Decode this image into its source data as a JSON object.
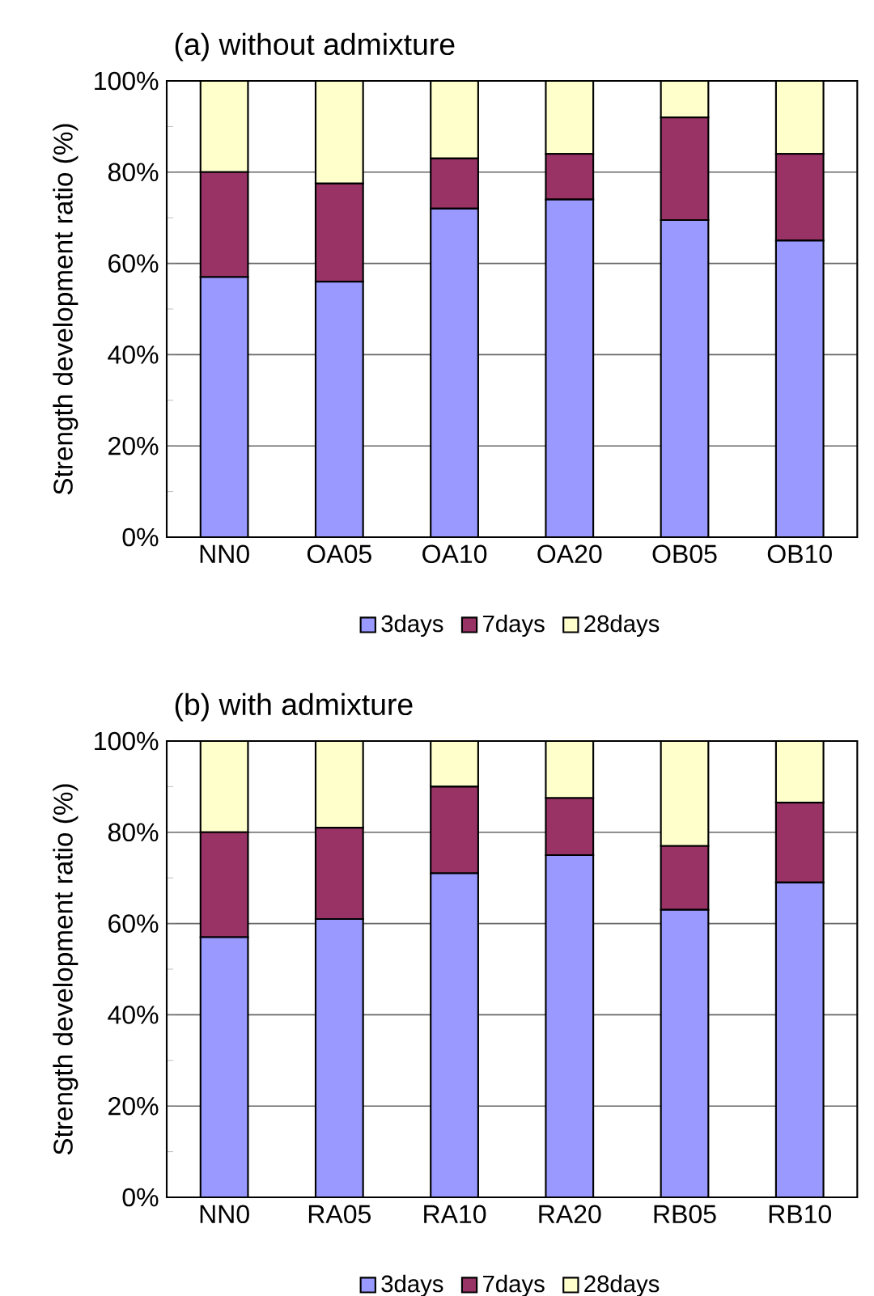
{
  "chart_data": [
    {
      "type": "bar",
      "title": "(a) without admixture",
      "ylabel": "Strength development ratio (%)",
      "stacked": true,
      "grid": "y",
      "legend": "bottom",
      "categories": [
        "NN0",
        "OA05",
        "OA10",
        "OA20",
        "OB05",
        "OB10"
      ],
      "series": [
        {
          "name": "3days",
          "color": "#9999ff",
          "values": [
            57,
            56,
            72,
            74,
            69.5,
            65
          ]
        },
        {
          "name": "7days",
          "color": "#993366",
          "values": [
            23,
            21.5,
            11,
            10,
            22.5,
            19
          ]
        },
        {
          "name": "28days",
          "color": "#ffffcc",
          "values": [
            20,
            22.5,
            17,
            16,
            8,
            16
          ]
        }
      ],
      "ylim": [
        0,
        100
      ],
      "yticks": [
        {
          "value": 0,
          "label": "0%"
        },
        {
          "value": 10,
          "label": null
        },
        {
          "value": 20,
          "label": "20%"
        },
        {
          "value": 30,
          "label": null
        },
        {
          "value": 40,
          "label": "40%"
        },
        {
          "value": 50,
          "label": null
        },
        {
          "value": 60,
          "label": "60%"
        },
        {
          "value": 70,
          "label": null
        },
        {
          "value": 80,
          "label": "80%"
        },
        {
          "value": 90,
          "label": null
        },
        {
          "value": 100,
          "label": "100%"
        }
      ]
    },
    {
      "type": "bar",
      "title": "(b) with admixture",
      "ylabel": "Strength development ratio (%)",
      "stacked": true,
      "grid": "y",
      "legend": "bottom",
      "categories": [
        "NN0",
        "RA05",
        "RA10",
        "RA20",
        "RB05",
        "RB10"
      ],
      "series": [
        {
          "name": "3days",
          "color": "#9999ff",
          "values": [
            57,
            61,
            71,
            75,
            63,
            69
          ]
        },
        {
          "name": "7days",
          "color": "#993366",
          "values": [
            23,
            20,
            19,
            12.5,
            14,
            17.5
          ]
        },
        {
          "name": "28days",
          "color": "#ffffcc",
          "values": [
            20,
            19,
            10,
            12.5,
            23,
            13.5
          ]
        }
      ],
      "ylim": [
        0,
        100
      ],
      "yticks": [
        {
          "value": 0,
          "label": "0%"
        },
        {
          "value": 10,
          "label": null
        },
        {
          "value": 20,
          "label": "20%"
        },
        {
          "value": 30,
          "label": null
        },
        {
          "value": 40,
          "label": "40%"
        },
        {
          "value": 50,
          "label": null
        },
        {
          "value": 60,
          "label": "60%"
        },
        {
          "value": 70,
          "label": null
        },
        {
          "value": 80,
          "label": "80%"
        },
        {
          "value": 90,
          "label": null
        },
        {
          "value": 100,
          "label": "100%"
        }
      ]
    }
  ]
}
